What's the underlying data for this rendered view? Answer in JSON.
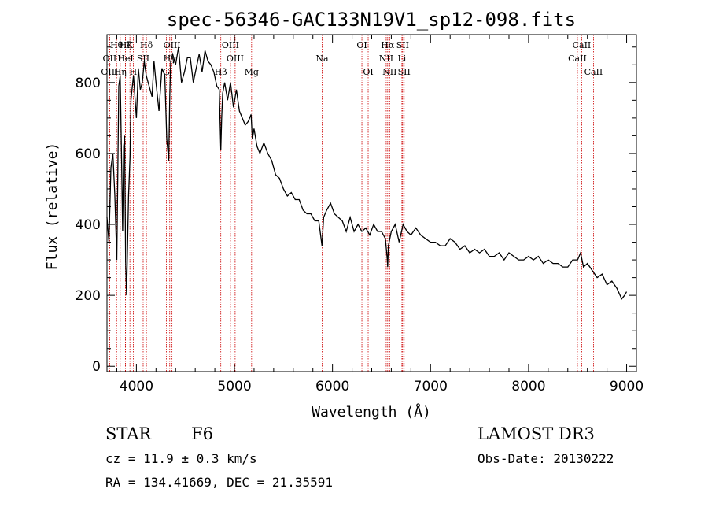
{
  "chart_data": {
    "type": "line",
    "title": "spec-56346-GAC133N19V1_sp12-098.fits",
    "xlabel": "Wavelength (Å)",
    "ylabel": "Flux (relative)",
    "xlim": [
      3700,
      9100
    ],
    "ylim": [
      -15,
      935
    ],
    "xticks": [
      4000,
      5000,
      6000,
      7000,
      8000,
      9000
    ],
    "yticks": [
      0,
      200,
      400,
      600,
      800
    ],
    "series": [
      {
        "name": "flux",
        "x": [
          3700,
          3720,
          3740,
          3760,
          3780,
          3800,
          3820,
          3835,
          3850,
          3860,
          3870,
          3880,
          3890,
          3900,
          3920,
          3935,
          3945,
          3955,
          3970,
          3985,
          4000,
          4020,
          4040,
          4060,
          4080,
          4100,
          4120,
          4140,
          4160,
          4180,
          4200,
          4230,
          4260,
          4290,
          4310,
          4330,
          4340,
          4350,
          4370,
          4400,
          4430,
          4460,
          4490,
          4520,
          4550,
          4580,
          4610,
          4640,
          4670,
          4700,
          4730,
          4760,
          4790,
          4820,
          4845,
          4861,
          4870,
          4880,
          4900,
          4930,
          4960,
          4990,
          5020,
          5050,
          5080,
          5110,
          5140,
          5170,
          5183,
          5200,
          5230,
          5260,
          5300,
          5340,
          5380,
          5420,
          5460,
          5500,
          5540,
          5580,
          5620,
          5660,
          5700,
          5740,
          5780,
          5820,
          5860,
          5893,
          5910,
          5940,
          5980,
          6020,
          6060,
          6100,
          6140,
          6180,
          6220,
          6260,
          6300,
          6340,
          6380,
          6420,
          6460,
          6500,
          6540,
          6560,
          6563,
          6570,
          6600,
          6640,
          6680,
          6720,
          6760,
          6800,
          6850,
          6900,
          6950,
          7000,
          7050,
          7100,
          7150,
          7200,
          7250,
          7300,
          7350,
          7400,
          7450,
          7500,
          7550,
          7600,
          7650,
          7700,
          7750,
          7800,
          7850,
          7900,
          7950,
          8000,
          8050,
          8100,
          8150,
          8200,
          8250,
          8300,
          8350,
          8400,
          8450,
          8500,
          8530,
          8560,
          8600,
          8650,
          8700,
          8750,
          8800,
          8850,
          8900,
          8950,
          8980,
          9000
        ],
        "values": [
          420,
          350,
          560,
          600,
          480,
          300,
          790,
          820,
          560,
          380,
          620,
          650,
          300,
          200,
          480,
          590,
          750,
          780,
          820,
          760,
          700,
          840,
          780,
          800,
          860,
          820,
          800,
          780,
          760,
          860,
          800,
          720,
          840,
          820,
          640,
          580,
          760,
          860,
          880,
          850,
          900,
          800,
          830,
          870,
          870,
          800,
          840,
          880,
          830,
          890,
          860,
          850,
          830,
          790,
          780,
          610,
          700,
          770,
          800,
          750,
          800,
          730,
          780,
          720,
          700,
          680,
          690,
          710,
          640,
          670,
          620,
          600,
          630,
          600,
          580,
          540,
          530,
          500,
          480,
          490,
          470,
          470,
          440,
          430,
          430,
          410,
          410,
          340,
          420,
          440,
          460,
          430,
          420,
          410,
          380,
          420,
          380,
          400,
          380,
          390,
          370,
          400,
          380,
          380,
          360,
          300,
          280,
          340,
          380,
          400,
          350,
          400,
          380,
          370,
          390,
          370,
          360,
          350,
          350,
          340,
          340,
          360,
          350,
          330,
          340,
          320,
          330,
          320,
          330,
          310,
          310,
          320,
          300,
          320,
          310,
          300,
          300,
          310,
          300,
          310,
          290,
          300,
          290,
          290,
          280,
          280,
          300,
          300,
          320,
          280,
          290,
          270,
          250,
          260,
          230,
          240,
          220,
          190,
          200,
          210
        ]
      }
    ],
    "lines": [
      {
        "label": "Hθ",
        "x": 3798,
        "row": 0
      },
      {
        "label": "OII",
        "x": 3727,
        "row": 1
      },
      {
        "label": "OIII",
        "x": 3727,
        "row": 2
      },
      {
        "label": "Hη",
        "x": 3835,
        "row": 2
      },
      {
        "label": "K",
        "x": 3934,
        "row": 0
      },
      {
        "label": "HeI",
        "x": 3889,
        "row": 1
      },
      {
        "label": "Hζ",
        "x": 3889,
        "row": 0
      },
      {
        "label": "H",
        "x": 3968,
        "row": 2
      },
      {
        "label": "SII",
        "x": 4069,
        "row": 1
      },
      {
        "label": "Hδ",
        "x": 4102,
        "row": 0
      },
      {
        "label": "OIII",
        "x": 4363,
        "row": 0
      },
      {
        "label": "Hγ",
        "x": 4340,
        "row": 1
      },
      {
        "label": "G",
        "x": 4305,
        "row": 2
      },
      {
        "label": "Hβ",
        "x": 4861,
        "row": 2
      },
      {
        "label": "OIII",
        "x": 4959,
        "row": 0
      },
      {
        "label": "OIII",
        "x": 5007,
        "row": 1
      },
      {
        "label": "Mg",
        "x": 5175,
        "row": 2
      },
      {
        "label": "Na",
        "x": 5894,
        "row": 1
      },
      {
        "label": "OI",
        "x": 6300,
        "row": 0
      },
      {
        "label": "OI",
        "x": 6364,
        "row": 2
      },
      {
        "label": "Hα",
        "x": 6563,
        "row": 0
      },
      {
        "label": "NII",
        "x": 6548,
        "row": 1
      },
      {
        "label": "NII",
        "x": 6583,
        "row": 2
      },
      {
        "label": "SII",
        "x": 6716,
        "row": 0
      },
      {
        "label": "Li",
        "x": 6708,
        "row": 1
      },
      {
        "label": "SII",
        "x": 6731,
        "row": 2
      },
      {
        "label": "CaII",
        "x": 8542,
        "row": 0
      },
      {
        "label": "CaII",
        "x": 8498,
        "row": 1
      },
      {
        "label": "CaII",
        "x": 8662,
        "row": 2
      }
    ]
  },
  "info": {
    "class_label": "STAR",
    "subclass": "F6",
    "redshift": "cz = 11.9 ± 0.3 km/s",
    "coords": "RA = 134.41669, DEC =  21.35591",
    "survey": "LAMOST DR3",
    "obs_date": "Obs-Date: 20130222"
  },
  "colors": {
    "line_marker": "#cc0000",
    "spectrum": "#000000"
  }
}
